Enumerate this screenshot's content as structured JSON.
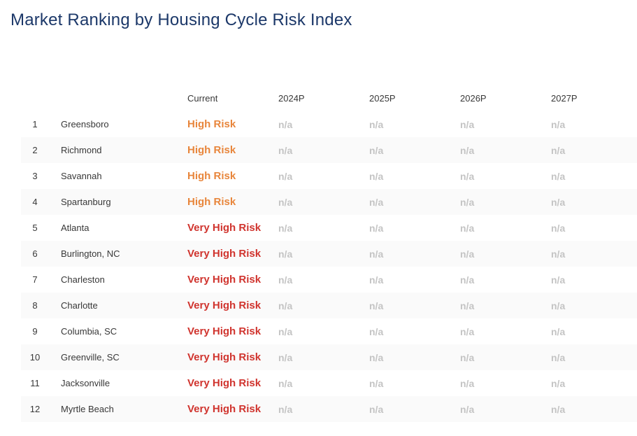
{
  "colors": {
    "title_navy": "#1C3869",
    "text_dark": "#383838",
    "risk_high_orange": "#E8863C",
    "risk_very_high_red": "#D0342E",
    "na_gray": "#C4C4C4",
    "row_alt_bg": "#FAFAFA"
  },
  "chart_data": {
    "type": "table",
    "title": "Market Ranking by Housing Cycle Risk Index",
    "column_headers": [
      "Current",
      "2024P",
      "2025P",
      "2026P",
      "2027P"
    ],
    "rows": [
      {
        "rank": "1",
        "market": "Greensboro",
        "current": "High Risk",
        "y2024": "n/a",
        "y2025": "n/a",
        "y2026": "n/a",
        "y2027": "n/a"
      },
      {
        "rank": "2",
        "market": "Richmond",
        "current": "High Risk",
        "y2024": "n/a",
        "y2025": "n/a",
        "y2026": "n/a",
        "y2027": "n/a"
      },
      {
        "rank": "3",
        "market": "Savannah",
        "current": "High Risk",
        "y2024": "n/a",
        "y2025": "n/a",
        "y2026": "n/a",
        "y2027": "n/a"
      },
      {
        "rank": "4",
        "market": "Spartanburg",
        "current": "High Risk",
        "y2024": "n/a",
        "y2025": "n/a",
        "y2026": "n/a",
        "y2027": "n/a"
      },
      {
        "rank": "5",
        "market": "Atlanta",
        "current": "Very High Risk",
        "y2024": "n/a",
        "y2025": "n/a",
        "y2026": "n/a",
        "y2027": "n/a"
      },
      {
        "rank": "6",
        "market": "Burlington, NC",
        "current": "Very High Risk",
        "y2024": "n/a",
        "y2025": "n/a",
        "y2026": "n/a",
        "y2027": "n/a"
      },
      {
        "rank": "7",
        "market": "Charleston",
        "current": "Very High Risk",
        "y2024": "n/a",
        "y2025": "n/a",
        "y2026": "n/a",
        "y2027": "n/a"
      },
      {
        "rank": "8",
        "market": "Charlotte",
        "current": "Very High Risk",
        "y2024": "n/a",
        "y2025": "n/a",
        "y2026": "n/a",
        "y2027": "n/a"
      },
      {
        "rank": "9",
        "market": "Columbia, SC",
        "current": "Very High Risk",
        "y2024": "n/a",
        "y2025": "n/a",
        "y2026": "n/a",
        "y2027": "n/a"
      },
      {
        "rank": "10",
        "market": "Greenville, SC",
        "current": "Very High Risk",
        "y2024": "n/a",
        "y2025": "n/a",
        "y2026": "n/a",
        "y2027": "n/a"
      },
      {
        "rank": "11",
        "market": "Jacksonville",
        "current": "Very High Risk",
        "y2024": "n/a",
        "y2025": "n/a",
        "y2026": "n/a",
        "y2027": "n/a"
      },
      {
        "rank": "12",
        "market": "Myrtle Beach",
        "current": "Very High Risk",
        "y2024": "n/a",
        "y2025": "n/a",
        "y2026": "n/a",
        "y2027": "n/a"
      }
    ]
  }
}
